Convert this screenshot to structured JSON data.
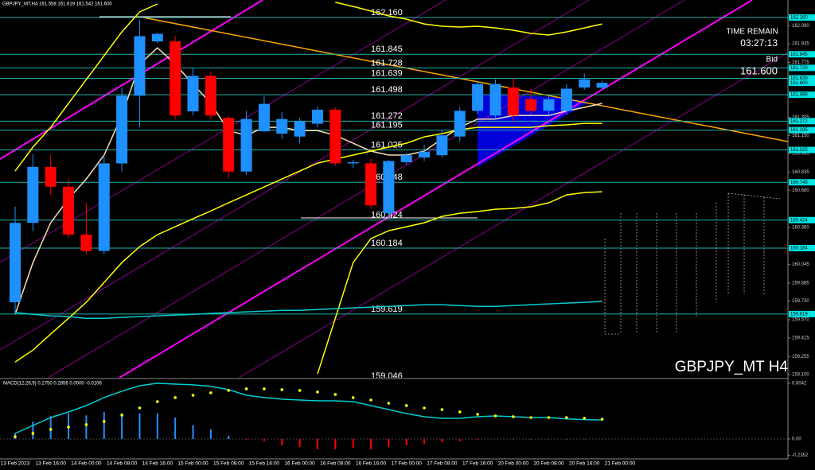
{
  "chart_data": {
    "type": "candlestick",
    "title": "GBPJPY_MT,H4 161.558 161.619 161.542 161.600",
    "watermark": "GBPJPY_MT H4",
    "time_remain_label": "TIME REMAIN",
    "time_remain": "03:27:13",
    "bid_label": "Bid",
    "bid": {
      "value": 161.6,
      "label": "161.600"
    },
    "bull_color": "#1e90ff",
    "bear_color": "#ff0000",
    "ylim": [
      159.073,
      162.31
    ],
    "yticks": [
      {
        "value": 162.09,
        "label": "162.090"
      },
      161.935,
      161.775,
      161.305,
      {
        "value": 161.15,
        "label": "161.150"
      },
      160.995,
      160.835,
      {
        "value": 160.68,
        "label": "160.680"
      },
      {
        "value": 160.36,
        "label": "160.360"
      },
      160.045,
      159.885,
      {
        "value": 159.73,
        "label": "159.730"
      },
      {
        "value": 159.57,
        "label": "159.570"
      },
      159.415,
      159.255,
      {
        "value": 159.1,
        "label": "159.100"
      }
    ],
    "levels": [
      {
        "value": 162.16,
        "label": "162.160"
      },
      161.845,
      161.728,
      161.639,
      161.498,
      161.272,
      161.195,
      161.025,
      160.748,
      160.424,
      160.184,
      159.619,
      159.046
    ],
    "level_color": "#20b2aa",
    "categories": [
      "13 Feb 2023",
      null,
      "13 Feb 16:00",
      null,
      "14 Feb 00:00",
      null,
      "14 Feb 08:00",
      null,
      "14 Feb 16:00",
      null,
      "15 Feb 00:00",
      null,
      "15 Feb 08:00",
      null,
      "15 Feb 16:00",
      null,
      "16 Feb 00:00",
      null,
      "16 Feb 08:00",
      null,
      "16 Feb 16:00",
      null,
      "17 Feb 00:00",
      null,
      "17 Feb 08:00",
      null,
      "17 Feb 16:00",
      null,
      "20 Feb 00:00",
      null,
      "20 Feb 08:00",
      null,
      "20 Feb 16:00",
      null,
      "21 Feb 00:00"
    ],
    "open": [
      159.72,
      160.4,
      160.88,
      160.71,
      160.3,
      160.16,
      160.91,
      161.49,
      161.955,
      161.955,
      161.356,
      161.66,
      161.3,
      160.84,
      161.185,
      161.165,
      161.14,
      161.25,
      161.37,
      160.91,
      160.91,
      160.483,
      160.92,
      160.96,
      160.98,
      161.14,
      161.36,
      161.32,
      161.56,
      161.46,
      161.36,
      161.36,
      161.56,
      161.558,
      null
    ],
    "high": [
      160.54,
      160.99,
      160.98,
      160.78,
      160.57,
      160.98,
      161.56,
      162.14,
      162.03,
      162.0,
      161.73,
      161.7,
      161.32,
      161.36,
      161.49,
      161.35,
      161.3,
      161.4,
      161.39,
      160.94,
      160.95,
      160.94,
      161.0,
      161.07,
      161.2,
      161.39,
      161.62,
      161.63,
      161.64,
      161.55,
      161.5,
      161.59,
      161.68,
      161.619,
      null
    ],
    "low": [
      159.62,
      160.33,
      160.64,
      160.27,
      160.13,
      160.13,
      160.84,
      161.22,
      161.94,
      161.29,
      161.32,
      161.29,
      160.78,
      160.81,
      161.18,
      161.12,
      161.08,
      161.22,
      160.89,
      160.87,
      160.52,
      160.43,
      160.9,
      160.93,
      160.96,
      161.1,
      161.33,
      161.29,
      161.27,
      161.33,
      161.32,
      161.33,
      161.54,
      161.542,
      null
    ],
    "close": [
      160.4,
      160.88,
      160.71,
      160.3,
      160.16,
      160.91,
      161.49,
      162.0,
      162.02,
      161.32,
      161.66,
      161.32,
      160.84,
      161.29,
      161.42,
      161.29,
      161.27,
      161.37,
      160.91,
      160.92,
      160.55,
      160.93,
      160.98,
      161.01,
      161.15,
      161.36,
      161.59,
      161.59,
      161.32,
      161.36,
      161.46,
      161.55,
      161.63,
      161.6,
      null
    ],
    "lines": [
      {
        "color": "#f5deb3",
        "values": [
          159.617,
          160.06,
          160.401,
          160.606,
          160.776,
          160.981,
          161.32,
          161.76,
          161.9,
          161.76,
          161.59,
          161.424,
          161.19,
          161.15,
          161.219,
          161.219,
          161.19,
          161.19,
          161.15,
          161.083,
          161.015,
          160.981,
          160.981,
          161.015,
          161.12,
          161.219,
          161.29,
          161.29,
          161.32,
          161.32,
          161.32,
          161.36,
          161.39,
          161.424,
          null
        ]
      },
      {
        "color": "#ffff00",
        "values": [
          159.208,
          159.31,
          159.447,
          159.583,
          159.72,
          159.89,
          160.06,
          160.197,
          160.299,
          160.367,
          160.435,
          160.503,
          160.572,
          160.64,
          160.708,
          160.776,
          160.844,
          160.912,
          160.947,
          160.981,
          161.015,
          161.049,
          161.083,
          161.137,
          161.165,
          161.199,
          161.219,
          161.219,
          161.219,
          161.219,
          161.233,
          161.24,
          161.253,
          161.253,
          null
        ]
      },
      {
        "color": "#ffff00",
        "values": [
          160.844,
          161.049,
          161.219,
          161.424,
          161.628,
          161.833,
          162.037,
          162.208,
          162.276,
          null,
          null,
          null,
          null,
          null,
          null,
          null,
          null,
          null,
          162.29,
          162.255,
          162.215,
          162.174,
          162.146,
          162.105,
          162.085,
          162.078,
          162.085,
          162.071,
          162.051,
          162.024,
          162.01,
          162.037,
          162.071,
          162.105,
          null
        ]
      },
      {
        "color": "#ffff00",
        "values": [
          null,
          null,
          null,
          null,
          null,
          null,
          null,
          null,
          null,
          null,
          null,
          null,
          null,
          null,
          null,
          null,
          null,
          159.106,
          159.583,
          160.06,
          160.265,
          160.333,
          160.367,
          160.401,
          160.456,
          160.483,
          160.497,
          160.517,
          160.524,
          160.538,
          160.572,
          160.64,
          160.66,
          160.667,
          null
        ]
      },
      {
        "color": "#00ced1",
        "values": [
          159.631,
          159.617,
          159.604,
          159.597,
          159.583,
          159.583,
          159.59,
          159.597,
          159.604,
          159.61,
          159.617,
          159.624,
          159.631,
          159.638,
          159.644,
          159.651,
          159.651,
          159.658,
          159.665,
          159.672,
          159.678,
          159.685,
          159.692,
          159.699,
          159.699,
          159.692,
          159.685,
          159.685,
          159.692,
          159.699,
          159.706,
          159.713,
          159.72,
          159.727,
          null
        ]
      }
    ],
    "macd": {
      "title": "MACD(12,26,9) 0.2750 0.2856 0.0000 -0.0106",
      "ylim": [
        -0.2874,
        0.8617
      ],
      "yticks": [
        0.8042,
        {
          "value": 0,
          "label": "0.00"
        },
        -0.2352
      ],
      "histogram": [
        0.08,
        0.25,
        0.33,
        0.37,
        0.34,
        0.39,
        0.37,
        0.37,
        0.37,
        0.31,
        0.2,
        0.14,
        0.046,
        -0.011,
        -0.034,
        -0.092,
        -0.115,
        -0.149,
        -0.149,
        -0.126,
        -0.149,
        -0.115,
        -0.092,
        -0.069,
        -0.046,
        -0.034,
        -0.011,
        -0.005,
        0,
        0,
        0,
        0,
        0,
        0,
        null
      ],
      "main": [
        0.08,
        0.195,
        0.31,
        0.391,
        0.483,
        0.598,
        0.69,
        0.77,
        0.805,
        0.793,
        0.782,
        0.759,
        0.713,
        0.632,
        0.598,
        0.575,
        0.563,
        0.552,
        0.552,
        0.54,
        0.483,
        0.425,
        0.368,
        0.322,
        0.299,
        0.299,
        0.322,
        0.333,
        0.322,
        0.31,
        0.31,
        0.29,
        0.28,
        0.275,
        null
      ],
      "signal": [
        0.034,
        0.08,
        0.138,
        0.172,
        0.207,
        0.253,
        0.345,
        0.448,
        0.54,
        0.598,
        0.632,
        0.667,
        0.701,
        0.724,
        0.724,
        0.713,
        0.701,
        0.678,
        0.644,
        0.598,
        0.563,
        0.517,
        0.483,
        0.448,
        0.425,
        0.391,
        0.356,
        0.333,
        0.322,
        0.31,
        0.31,
        0.31,
        0.299,
        0.2856,
        null
      ],
      "main_color": "#00ced1",
      "signal_color": "#ffff00"
    }
  }
}
